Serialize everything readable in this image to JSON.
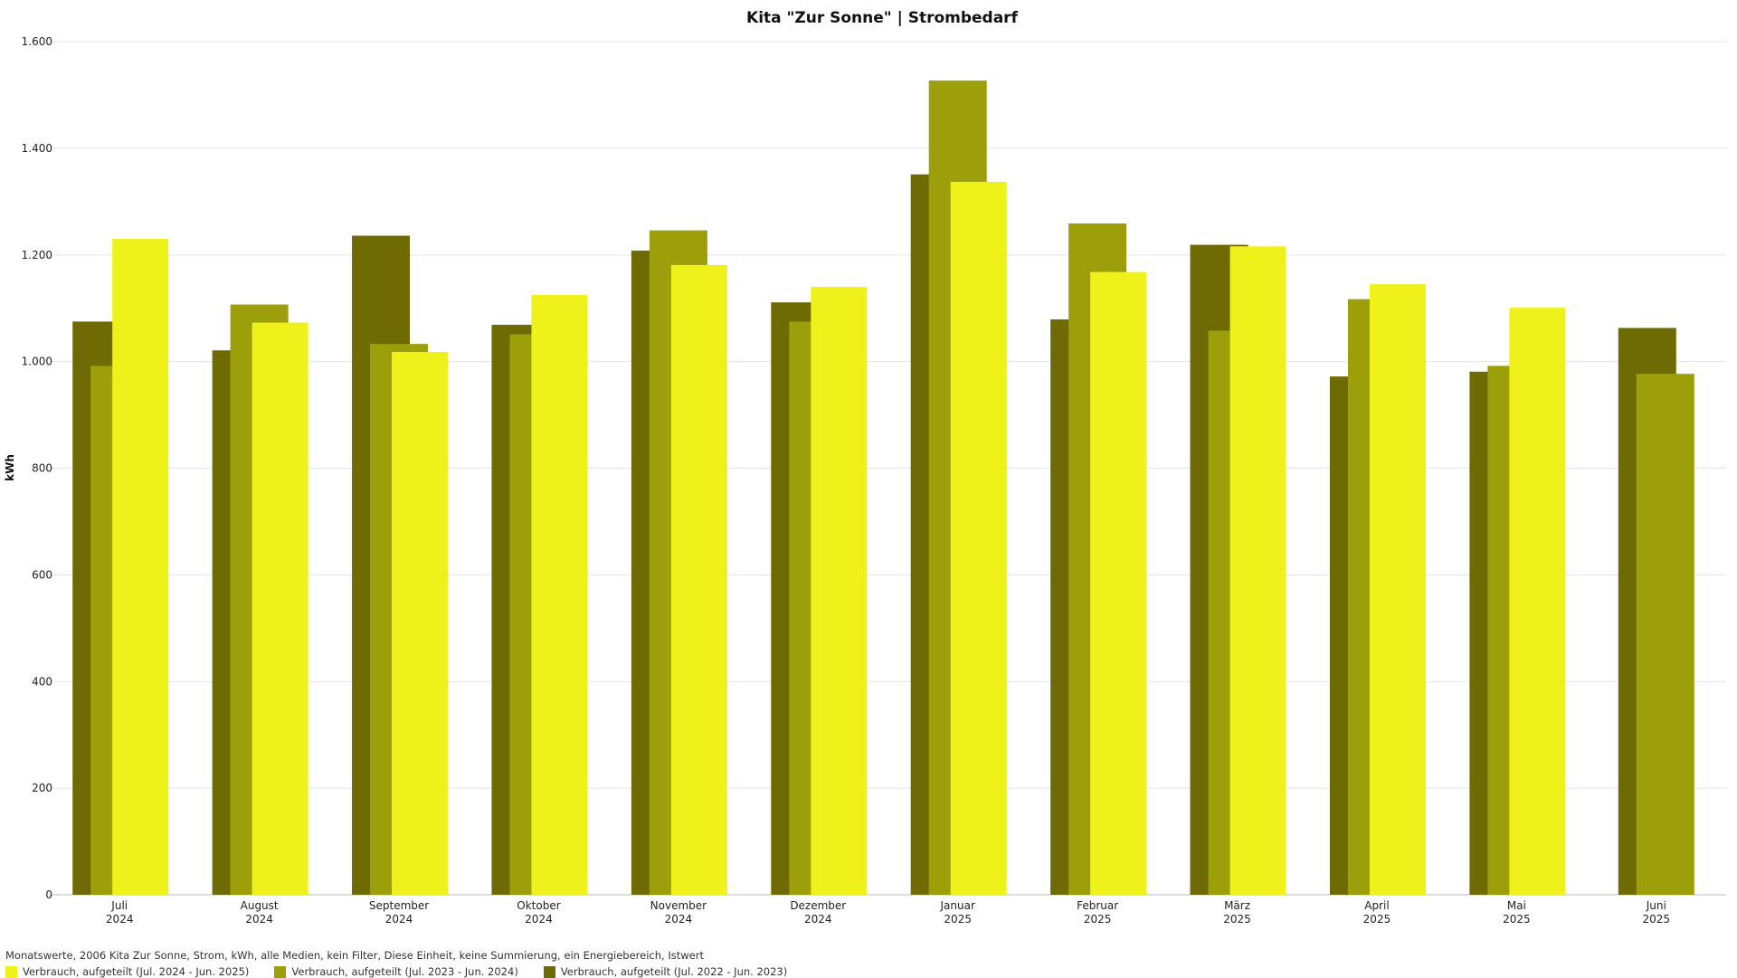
{
  "chart_data": {
    "type": "bar",
    "title": "Kita \"Zur Sonne\" | Strombedarf",
    "ylabel": "kWh",
    "xlabel": "",
    "ylim": [
      0,
      1600
    ],
    "yticks": [
      0,
      200,
      400,
      600,
      800,
      1000,
      1200,
      1400,
      1600
    ],
    "ytick_labels": [
      "0",
      "200",
      "400",
      "600",
      "800",
      "1.000",
      "1.200",
      "1.400",
      "1.600"
    ],
    "grid": true,
    "legend_position": "bottom-left",
    "categories": [
      {
        "month": "Juli",
        "year": "2024"
      },
      {
        "month": "August",
        "year": "2024"
      },
      {
        "month": "September",
        "year": "2024"
      },
      {
        "month": "Oktober",
        "year": "2024"
      },
      {
        "month": "November",
        "year": "2024"
      },
      {
        "month": "Dezember",
        "year": "2024"
      },
      {
        "month": "Januar",
        "year": "2025"
      },
      {
        "month": "Februar",
        "year": "2025"
      },
      {
        "month": "März",
        "year": "2025"
      },
      {
        "month": "April",
        "year": "2025"
      },
      {
        "month": "Mai",
        "year": "2025"
      },
      {
        "month": "Juni",
        "year": "2025"
      }
    ],
    "series": [
      {
        "name": "Verbrauch, aufgeteilt (Jul. 2022 - Jun. 2023)",
        "color": "#6e6b05",
        "values": [
          1075,
          1021,
          1236,
          1069,
          1208,
          1111,
          1351,
          1079,
          1219,
          972,
          981,
          1063
        ]
      },
      {
        "name": "Verbrauch, aufgeteilt (Jul. 2023 - Jun. 2024)",
        "color": "#9c9e0a",
        "values": [
          992,
          1107,
          1033,
          1051,
          1246,
          1075,
          1527,
          1259,
          1058,
          1117,
          992,
          977
        ]
      },
      {
        "name": "Verbrauch, aufgeteilt (Jul. 2024 - Jun. 2025)",
        "color": "#eef21a",
        "values": [
          1230,
          1073,
          1018,
          1125,
          1181,
          1140,
          1337,
          1168,
          1216,
          1145,
          1101,
          null
        ]
      }
    ]
  },
  "footer_text": "Monatswerte, 2006 Kita Zur Sonne, Strom, kWh, alle Medien, kein Filter, Diese Einheit, keine Summierung, ein Energiebereich, Istwert",
  "legend": [
    {
      "label": "Verbrauch, aufgeteilt (Jul. 2024 - Jun. 2025)",
      "color": "#eef21a"
    },
    {
      "label": "Verbrauch, aufgeteilt (Jul. 2023 - Jun. 2024)",
      "color": "#9c9e0a"
    },
    {
      "label": "Verbrauch, aufgeteilt (Jul. 2022 - Jun. 2023)",
      "color": "#6e6b05"
    }
  ]
}
